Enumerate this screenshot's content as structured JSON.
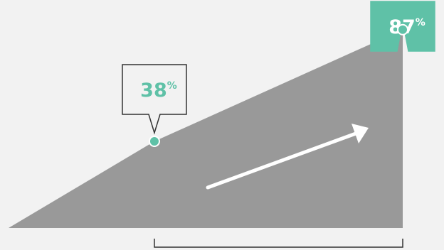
{
  "chart_data": {
    "type": "area",
    "title": "",
    "xlabel": "",
    "ylabel": "",
    "ylim": [
      0,
      100
    ],
    "series": [
      {
        "points": [
          {
            "x": 0,
            "y": 0
          },
          {
            "x": 37,
            "y": 38
          },
          {
            "x": 100,
            "y": 87
          }
        ]
      }
    ],
    "callouts": [
      {
        "value": "38",
        "unit": "%",
        "style": "outlined",
        "point_index": 1
      },
      {
        "value": "87",
        "unit": "%",
        "style": "filled",
        "point_index": 2
      }
    ],
    "trend_arrow": "up",
    "bracket_span": {
      "from_point_index": 1,
      "to_point_index": 2
    }
  },
  "colors": {
    "background": "#f2f2f2",
    "area": "#999999",
    "accent": "#5fc1a7",
    "outline": "#333333",
    "arrow": "#ffffff",
    "bracket": "#333333"
  }
}
